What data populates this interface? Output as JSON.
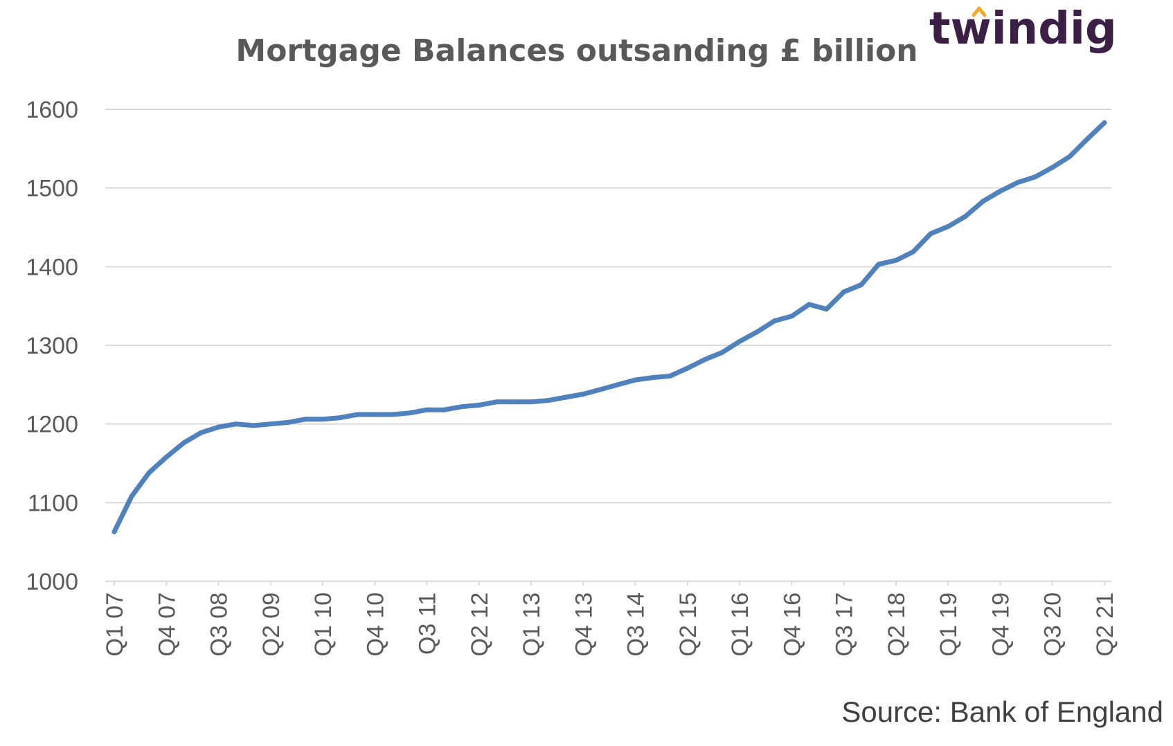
{
  "chart_data": {
    "type": "line",
    "title": "Mortgage Balances outsanding £ billion",
    "xlabel": "",
    "ylabel": "",
    "ylim": [
      1000,
      1600
    ],
    "yticks": [
      1000,
      1100,
      1200,
      1300,
      1400,
      1500,
      1600
    ],
    "grid": true,
    "legend": "none",
    "colors": {
      "series": "#4f81bd",
      "grid": "#d9d9d9",
      "text": "#595959"
    },
    "x": [
      "Q1 07",
      "Q2 07",
      "Q3 07",
      "Q4 07",
      "Q1 08",
      "Q2 08",
      "Q3 08",
      "Q4 08",
      "Q1 09",
      "Q2 09",
      "Q3 09",
      "Q4 09",
      "Q1 10",
      "Q2 10",
      "Q3 10",
      "Q4 10",
      "Q1 11",
      "Q2 11",
      "Q3 11",
      "Q4 11",
      "Q1 12",
      "Q2 12",
      "Q3 12",
      "Q4 12",
      "Q1 13",
      "Q2 13",
      "Q3 13",
      "Q4 13",
      "Q1 14",
      "Q2 14",
      "Q3 14",
      "Q4 14",
      "Q1 15",
      "Q2 15",
      "Q3 15",
      "Q4 15",
      "Q1 16",
      "Q2 16",
      "Q3 16",
      "Q4 16",
      "Q1 17",
      "Q2 17",
      "Q3 17",
      "Q4 17",
      "Q1 18",
      "Q2 18",
      "Q3 18",
      "Q4 18",
      "Q1 19",
      "Q2 19",
      "Q3 19",
      "Q4 19",
      "Q1 20",
      "Q2 20",
      "Q3 20",
      "Q4 20",
      "Q1 21",
      "Q2 21"
    ],
    "xtick_labels": [
      "Q1 07",
      "Q4 07",
      "Q3 08",
      "Q2 09",
      "Q1 10",
      "Q4 10",
      "Q3 11",
      "Q2 12",
      "Q1 13",
      "Q4 13",
      "Q3 14",
      "Q2 15",
      "Q1 16",
      "Q4 16",
      "Q3 17",
      "Q2 18",
      "Q1 19",
      "Q4 19",
      "Q3 20",
      "Q2 21"
    ],
    "series": [
      {
        "values": [
          1063,
          1108,
          1138,
          1158,
          1176,
          1189,
          1196,
          1200,
          1198,
          1200,
          1202,
          1206,
          1206,
          1208,
          1212,
          1212,
          1212,
          1214,
          1218,
          1218,
          1222,
          1224,
          1228,
          1228,
          1228,
          1230,
          1234,
          1238,
          1244,
          1250,
          1256,
          1259,
          1261,
          1271,
          1282,
          1291,
          1305,
          1317,
          1331,
          1337,
          1352,
          1346,
          1368,
          1377,
          1403,
          1408,
          1419,
          1442,
          1451,
          1464,
          1483,
          1496,
          1507,
          1514,
          1526,
          1540,
          1562,
          1583
        ]
      }
    ],
    "source": "Source: Bank of England"
  },
  "logo": {
    "text": "twindig"
  }
}
